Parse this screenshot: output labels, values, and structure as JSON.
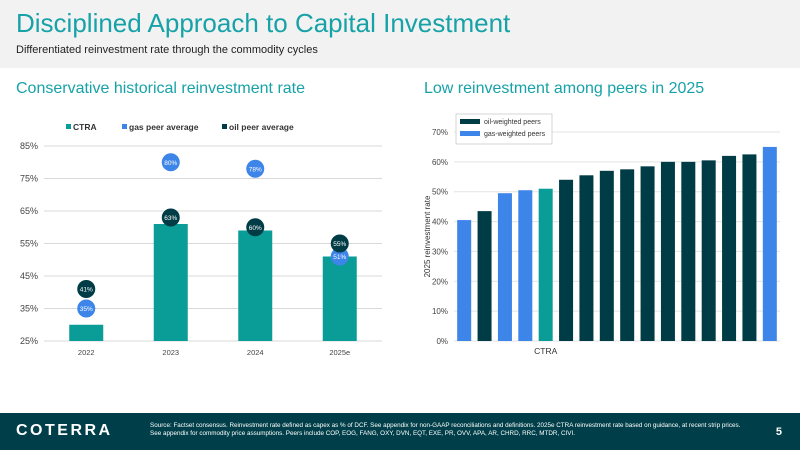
{
  "header": {
    "title": "Disciplined Approach to Capital Investment",
    "subtitle": "Differentiated reinvestment rate through the commodity cycles"
  },
  "left_section": {
    "title": "Conservative historical reinvestment rate"
  },
  "right_section": {
    "title": "Low reinvestment among peers in 2025"
  },
  "colors": {
    "teal": "#0a9c96",
    "blue": "#3d85e8",
    "navy": "#003c45",
    "title_teal": "#17a2a8"
  },
  "chart_data": [
    {
      "type": "bar",
      "categories": [
        "2022",
        "2023",
        "2024",
        "2025e"
      ],
      "ylim": [
        25,
        85
      ],
      "yticks": [
        "25%",
        "35%",
        "45%",
        "55%",
        "65%",
        "75%",
        "85%"
      ],
      "ytick_values": [
        25,
        35,
        45,
        55,
        65,
        75,
        85
      ],
      "grid": true,
      "legend_position": "top-left",
      "series": [
        {
          "name": "CTRA",
          "kind": "bar",
          "values": [
            30,
            61,
            59,
            51
          ]
        },
        {
          "name": "gas peer average",
          "kind": "marker",
          "values": [
            35,
            80,
            78,
            51
          ],
          "labels": [
            "35%",
            "80%",
            "78%",
            "51%"
          ]
        },
        {
          "name": "oil peer average",
          "kind": "marker",
          "values": [
            41,
            63,
            60,
            55
          ],
          "labels": [
            "41%",
            "63%",
            "60%",
            "55%"
          ]
        }
      ]
    },
    {
      "type": "bar",
      "ylabel": "2025 reinvestment rate",
      "ylim": [
        0,
        70
      ],
      "yticks": [
        "0%",
        "10%",
        "20%",
        "30%",
        "40%",
        "50%",
        "60%",
        "70%"
      ],
      "ytick_values": [
        0,
        10,
        20,
        30,
        40,
        50,
        60,
        70
      ],
      "grid": true,
      "legend_position": "top-left",
      "legend": [
        "oil-weighted peers",
        "gas-weighted peers"
      ],
      "highlight_label": "CTRA",
      "highlight_index": 4,
      "values": [
        40.5,
        43.5,
        49.5,
        50.5,
        51,
        54,
        55.5,
        57,
        57.5,
        58.5,
        60,
        60,
        60.5,
        62,
        62.5,
        65
      ],
      "groups": [
        "gas",
        "oil",
        "gas",
        "gas",
        "ctra",
        "oil",
        "oil",
        "oil",
        "oil",
        "oil",
        "oil",
        "oil",
        "oil",
        "oil",
        "oil",
        "gas"
      ]
    }
  ],
  "footer": {
    "logo": "COTERRA",
    "source": "Source: Factset consensus. Reinvestment rate defined as capex as % of DCF. See appendix for non-GAAP reconciliations and definitions. 2025e CTRA reinvestment rate based on guidance, at recent strip prices. See appendix for commodity price assumptions. Peers include COP, EOG, FANG, OXY, DVN, EQT, EXE, PR, OVV, APA, AR, CHRD, RRC, MTDR, CIVI.",
    "page": "5"
  }
}
